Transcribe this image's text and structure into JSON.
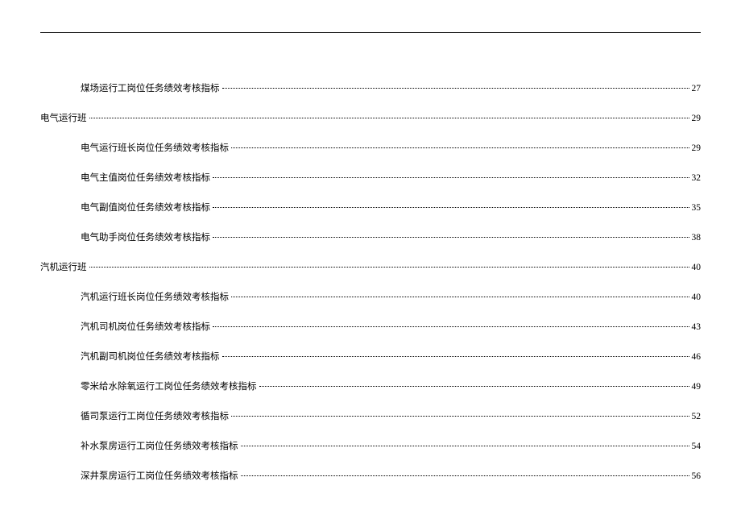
{
  "document": {
    "border_color": "#000000",
    "background_color": "#ffffff",
    "font_size": 11.5,
    "text_color": "#000000"
  },
  "toc": [
    {
      "level": 1,
      "title": "煤场运行工岗位任务绩效考核指标",
      "page": "27"
    },
    {
      "level": 0,
      "title": "电气运行班",
      "page": "29"
    },
    {
      "level": 1,
      "title": "电气运行班长岗位任务绩效考核指标",
      "page": "29"
    },
    {
      "level": 1,
      "title": "电气主值岗位任务绩效考核指标",
      "page": "32"
    },
    {
      "level": 1,
      "title": "电气副值岗位任务绩效考核指标",
      "page": "35"
    },
    {
      "level": 1,
      "title": "电气助手岗位任务绩效考核指标",
      "page": "38"
    },
    {
      "level": 0,
      "title": "汽机运行班",
      "page": "40"
    },
    {
      "level": 1,
      "title": "汽机运行班长岗位任务绩效考核指标",
      "page": "40"
    },
    {
      "level": 1,
      "title": "汽机司机岗位任务绩效考核指标",
      "page": "43"
    },
    {
      "level": 1,
      "title": "汽机副司机岗位任务绩效考核指标",
      "page": "46"
    },
    {
      "level": 1,
      "title": "零米给水除氧运行工岗位任务绩效考核指标",
      "page": "49"
    },
    {
      "level": 1,
      "title": "循司泵运行工岗位任务绩效考核指标",
      "page": "52"
    },
    {
      "level": 1,
      "title": "补水泵房运行工岗位任务绩效考核指标",
      "page": "54"
    },
    {
      "level": 1,
      "title": "深井泵房运行工岗位任务绩效考核指标",
      "page": "56"
    }
  ]
}
